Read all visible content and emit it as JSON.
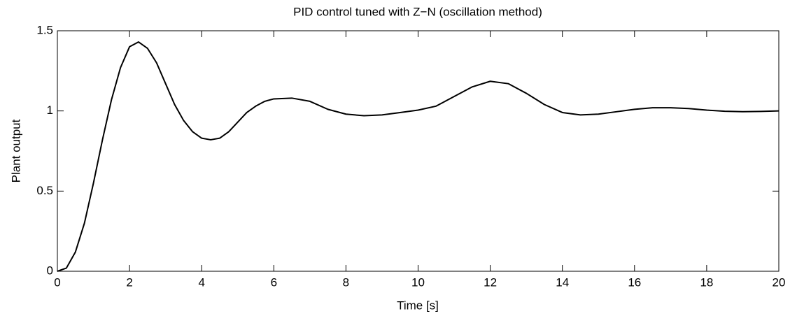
{
  "chart_data": {
    "type": "line",
    "title": "PID control tuned with Z−N (oscillation method)",
    "x_label": "Time [s]",
    "y_label": "Plant output",
    "x": [
      0,
      0.25,
      0.5,
      0.75,
      1,
      1.25,
      1.5,
      1.75,
      2,
      2.25,
      2.5,
      2.75,
      3,
      3.25,
      3.5,
      3.75,
      4,
      4.25,
      4.5,
      4.75,
      5,
      5.25,
      5.5,
      5.75,
      6,
      6.5,
      7,
      7.5,
      8,
      8.5,
      9,
      9.5,
      10,
      10.5,
      11,
      11.5,
      12,
      12.5,
      13,
      13.5,
      14,
      14.5,
      15,
      15.5,
      16,
      16.5,
      17,
      17.5,
      18,
      18.5,
      19,
      19.5,
      20
    ],
    "series": [
      {
        "color": "#000000",
        "values": [
          0,
          0.02,
          0.12,
          0.3,
          0.55,
          0.82,
          1.07,
          1.27,
          1.4,
          1.43,
          1.39,
          1.3,
          1.17,
          1.04,
          0.94,
          0.87,
          0.83,
          0.82,
          0.83,
          0.87,
          0.93,
          0.99,
          1.03,
          1.06,
          1.075,
          1.08,
          1.06,
          1.01,
          0.98,
          0.97,
          0.975,
          0.99,
          1.005,
          1.03,
          1.09,
          1.15,
          1.185,
          1.17,
          1.11,
          1.04,
          0.99,
          0.975,
          0.98,
          0.995,
          1.01,
          1.02,
          1.02,
          1.015,
          1.005,
          0.998,
          0.995,
          0.997,
          1.0
        ]
      }
    ],
    "xlim": [
      0,
      20
    ],
    "xticks": [
      0,
      2,
      4,
      6,
      8,
      10,
      12,
      14,
      16,
      18,
      20
    ],
    "ylim": [
      0,
      1.5
    ],
    "yticks": [
      0,
      0.5,
      1,
      1.5
    ],
    "grid": false
  }
}
